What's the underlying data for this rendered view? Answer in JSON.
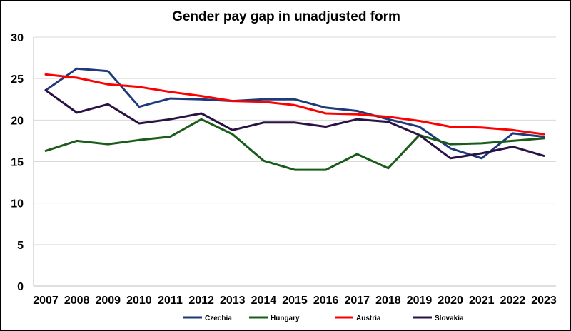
{
  "chart_data": {
    "type": "line",
    "title": "Gender pay gap in unadjusted form",
    "xlabel": "",
    "ylabel": "",
    "categories": [
      "2007",
      "2008",
      "2009",
      "2010",
      "2011",
      "2012",
      "2013",
      "2014",
      "2015",
      "2016",
      "2017",
      "2018",
      "2019",
      "2020",
      "2021",
      "2022",
      "2023"
    ],
    "ylim": [
      0,
      30
    ],
    "yticks": [
      "0",
      "5",
      "10",
      "15",
      "20",
      "25",
      "30"
    ],
    "grid": true,
    "legend_position": "bottom",
    "series": [
      {
        "name": "Czechia",
        "color": "#1f3a7a",
        "values": [
          23.6,
          26.2,
          25.9,
          21.6,
          22.6,
          22.5,
          22.3,
          22.5,
          22.5,
          21.5,
          21.1,
          20.1,
          19.2,
          16.6,
          15.4,
          18.4,
          18.0
        ]
      },
      {
        "name": "Hungary",
        "color": "#1a5c1a",
        "values": [
          16.3,
          17.5,
          17.1,
          17.6,
          18.0,
          20.1,
          18.3,
          15.1,
          14.0,
          14.0,
          15.9,
          14.2,
          18.2,
          17.1,
          17.2,
          17.5,
          17.8
        ]
      },
      {
        "name": "Austria",
        "color": "#ff0000",
        "values": [
          25.5,
          25.1,
          24.3,
          24.0,
          23.4,
          22.9,
          22.3,
          22.2,
          21.8,
          20.8,
          20.7,
          20.4,
          19.9,
          19.2,
          19.1,
          18.8,
          18.3
        ]
      },
      {
        "name": "Slovakia",
        "color": "#2a1245",
        "values": [
          23.6,
          20.9,
          21.9,
          19.6,
          20.1,
          20.8,
          18.8,
          19.7,
          19.7,
          19.2,
          20.1,
          19.8,
          18.2,
          15.4,
          16.0,
          16.8,
          15.7
        ]
      }
    ]
  }
}
